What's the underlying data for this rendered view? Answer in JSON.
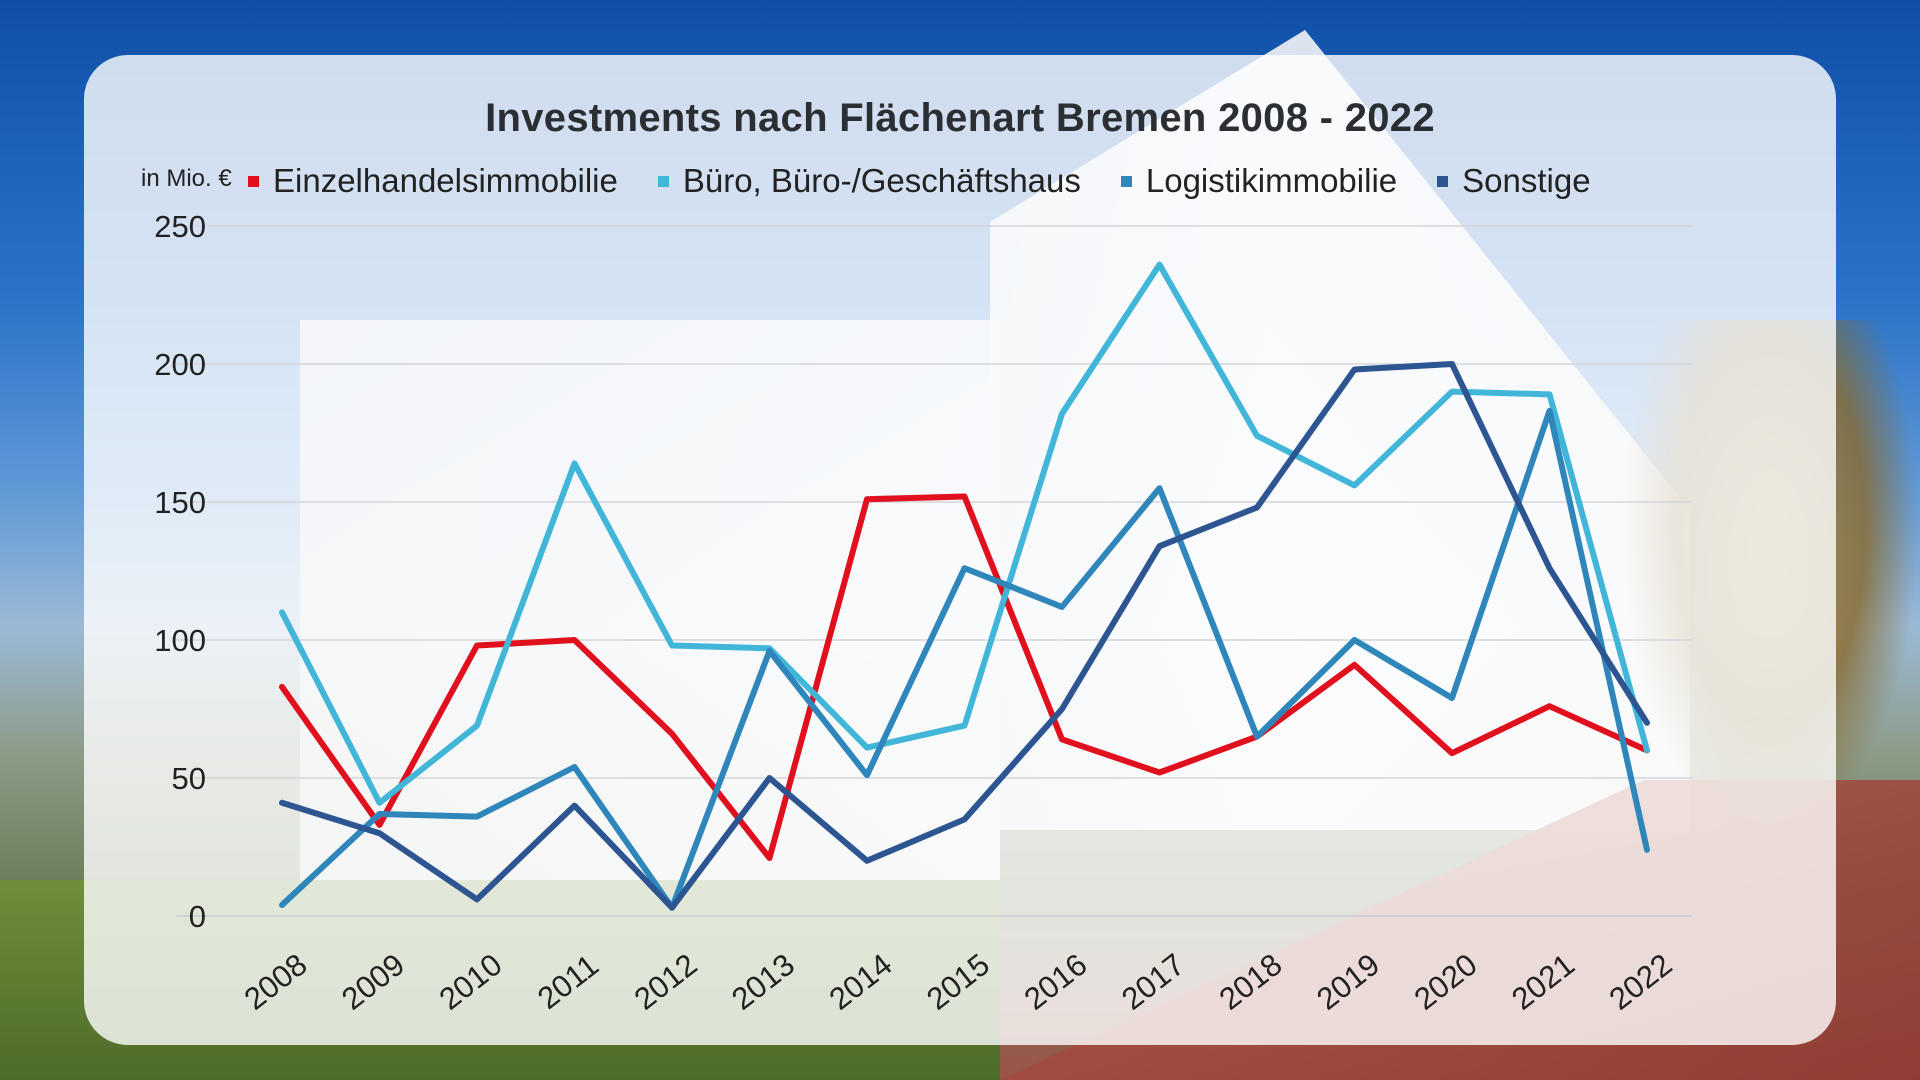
{
  "chart_data": {
    "type": "line",
    "title": "Investments nach Flächenart Bremen 2008 - 2022",
    "ylabel": "in Mio. €",
    "xlabel": "",
    "ylim": [
      0,
      250
    ],
    "yticks": [
      0,
      50,
      100,
      150,
      200,
      250
    ],
    "grid": true,
    "legend_position": "top",
    "categories": [
      "2008",
      "2009",
      "2010",
      "2011",
      "2012",
      "2013",
      "2014",
      "2015",
      "2016",
      "2017",
      "2018",
      "2019",
      "2020",
      "2021",
      "2022"
    ],
    "series": [
      {
        "name": "Einzelhandelsimmobilie",
        "color": "#e0101e",
        "values": [
          83,
          33,
          98,
          100,
          66,
          21,
          151,
          152,
          64,
          52,
          65,
          91,
          59,
          76,
          60
        ]
      },
      {
        "name": "Büro, Büro-/Geschäftshaus",
        "color": "#41b6d9",
        "values": [
          110,
          41,
          69,
          164,
          98,
          97,
          61,
          69,
          182,
          236,
          174,
          156,
          190,
          189,
          60
        ]
      },
      {
        "name": "Logistikimmobilie",
        "color": "#2e86bb",
        "values": [
          4,
          37,
          36,
          54,
          3,
          96,
          51,
          126,
          112,
          155,
          65,
          100,
          79,
          183,
          24
        ]
      },
      {
        "name": "Sonstige",
        "color": "#2c5592",
        "values": [
          41,
          30,
          6,
          40,
          3,
          50,
          20,
          35,
          75,
          134,
          148,
          198,
          200,
          126,
          70
        ]
      }
    ]
  }
}
